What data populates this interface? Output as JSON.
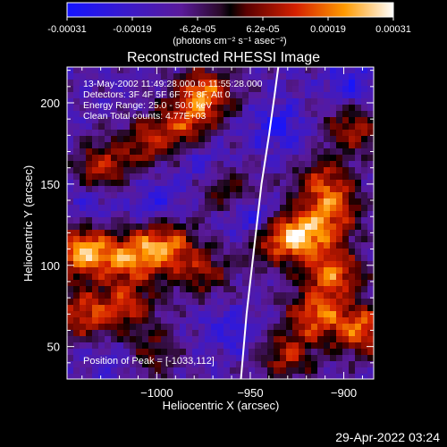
{
  "colorbar": {
    "tick_labels": [
      "-0.00031",
      "-0.00019",
      "-6.2e-05",
      "6.2e-05",
      "0.00019",
      "0.00031"
    ],
    "units_label": "(photons cm⁻² s⁻¹ asec⁻²)",
    "range": [
      -0.00031,
      0.00031
    ]
  },
  "chart_data": {
    "type": "heatmap",
    "title": "Reconstructed RHESSI Image",
    "xlabel": "Heliocentric X (arcsec)",
    "ylabel": "Heliocentric Y (arcsec)",
    "xlim": [
      -1048,
      -884
    ],
    "ylim": [
      30,
      222
    ],
    "x_ticks": [
      -1000,
      -950,
      -900
    ],
    "x_tick_labels": [
      "−1000",
      "−950",
      "−900"
    ],
    "y_ticks": [
      50,
      100,
      150,
      200
    ],
    "y_tick_labels": [
      "50",
      "100",
      "150",
      "200"
    ],
    "info_lines": [
      "13-May-2002 11:49:28.000 to 11:55:28.000",
      "Detectors: 3F 4F 5F 6F 7F 8F, Att 0",
      "Energy Range: 25.0 - 50.0 keV",
      "Clean    Total counts: 4.77E+03"
    ],
    "peak_label": "Position of Peak = [-1033,112]",
    "peak_position": [
      -1033,
      112
    ],
    "limb_curve": {
      "x": [
        -955,
        -952,
        -948,
        -944,
        -940,
        -937,
        -935
      ],
      "y": [
        30,
        70,
        110,
        150,
        180,
        205,
        222
      ]
    },
    "hot_spots": [
      {
        "x": -1040,
        "y": 108,
        "v": 1.0
      },
      {
        "x": -1015,
        "y": 105,
        "v": 0.8
      },
      {
        "x": -995,
        "y": 112,
        "v": 0.85
      },
      {
        "x": -975,
        "y": 95,
        "v": 0.5
      },
      {
        "x": -1030,
        "y": 160,
        "v": 0.65
      },
      {
        "x": -1005,
        "y": 175,
        "v": 0.55
      },
      {
        "x": -975,
        "y": 205,
        "v": 0.9
      },
      {
        "x": -985,
        "y": 185,
        "v": 0.55
      },
      {
        "x": -960,
        "y": 145,
        "v": 0.55
      },
      {
        "x": -1040,
        "y": 70,
        "v": 0.7
      },
      {
        "x": -1015,
        "y": 75,
        "v": 0.6
      },
      {
        "x": -1005,
        "y": 45,
        "v": 0.5
      },
      {
        "x": -940,
        "y": 115,
        "v": 0.5
      },
      {
        "x": -923,
        "y": 118,
        "v": 0.95
      },
      {
        "x": -905,
        "y": 95,
        "v": 0.8
      },
      {
        "x": -915,
        "y": 70,
        "v": 0.75
      },
      {
        "x": -890,
        "y": 60,
        "v": 0.85
      },
      {
        "x": -930,
        "y": 45,
        "v": 0.6
      },
      {
        "x": -910,
        "y": 150,
        "v": 0.7
      },
      {
        "x": -895,
        "y": 185,
        "v": 0.6
      },
      {
        "x": -905,
        "y": 130,
        "v": 0.6
      }
    ],
    "cold_spots": [
      {
        "x": -950,
        "y": 130,
        "v": 0.9
      },
      {
        "x": -935,
        "y": 185,
        "v": 0.6
      },
      {
        "x": -1020,
        "y": 40,
        "v": 0.5
      },
      {
        "x": -1035,
        "y": 140,
        "v": 0.4
      },
      {
        "x": -1000,
        "y": 140,
        "v": 0.5
      },
      {
        "x": -975,
        "y": 165,
        "v": 0.45
      },
      {
        "x": -895,
        "y": 210,
        "v": 0.55
      },
      {
        "x": -960,
        "y": 60,
        "v": 0.45
      }
    ]
  },
  "timestamp": "29-Apr-2022 03:24"
}
